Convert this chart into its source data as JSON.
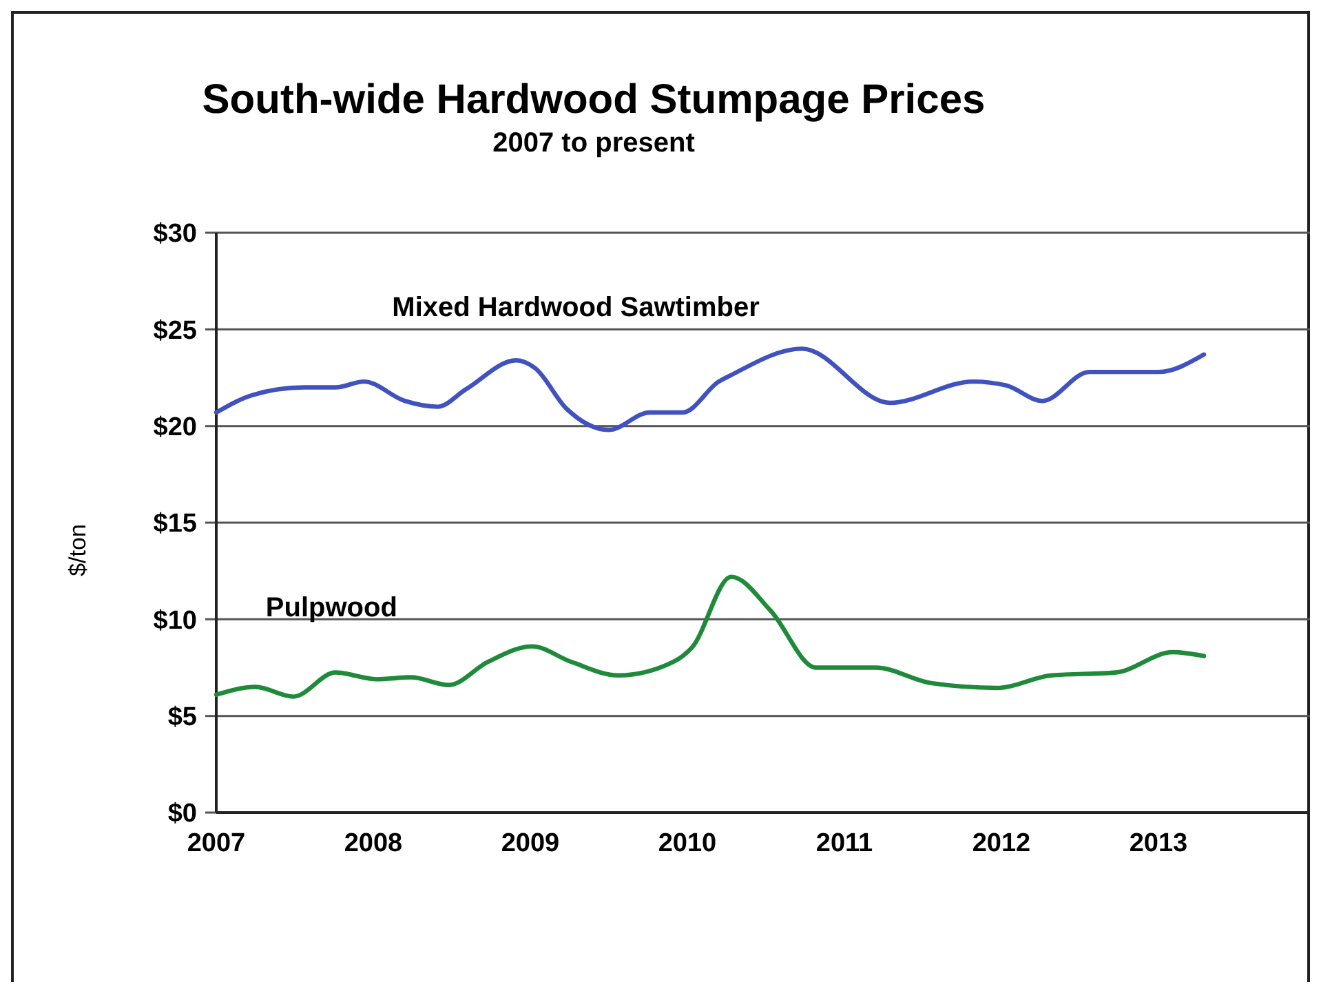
{
  "chart_data": {
    "type": "line",
    "title": "South-wide Hardwood Stumpage Prices",
    "subtitle": "2007 to present",
    "ylabel": "$/ton",
    "xlim": [
      2007,
      2014
    ],
    "xticks": [
      {
        "value": 2007,
        "label": "2007"
      },
      {
        "value": 2008,
        "label": "2008"
      },
      {
        "value": 2009,
        "label": "2009"
      },
      {
        "value": 2010,
        "label": "2010"
      },
      {
        "value": 2011,
        "label": "2011"
      },
      {
        "value": 2012,
        "label": "2012"
      },
      {
        "value": 2013,
        "label": "2013"
      }
    ],
    "ylim": [
      0,
      30
    ],
    "yticks": [
      {
        "value": 0,
        "label": "$0"
      },
      {
        "value": 5,
        "label": "$5"
      },
      {
        "value": 10,
        "label": "$10"
      },
      {
        "value": 15,
        "label": "$15"
      },
      {
        "value": 20,
        "label": "$20"
      },
      {
        "value": 25,
        "label": "$25"
      },
      {
        "value": 30,
        "label": "$30"
      }
    ],
    "grid": "y",
    "marker": "none",
    "line_style": "solid",
    "series": [
      {
        "name": "Mixed Hardwood Sawtimber",
        "color": "#4051c0",
        "x": [
          2007,
          2007.23,
          2007.56,
          2007.76,
          2007.94,
          2008.2,
          2008.41,
          2008.59,
          2008.91,
          2009.03,
          2009.23,
          2009.5,
          2009.76,
          2009.97,
          2010.2,
          2010.27,
          2010.73,
          2011.29,
          2011.82,
          2012.03,
          2012.26,
          2012.56,
          2013,
          2013.29
        ],
        "values": [
          20.7,
          21.6,
          22,
          22,
          22.3,
          21.3,
          21,
          21.9,
          23.4,
          23,
          20.9,
          19.8,
          20.7,
          20.7,
          22.3,
          22.6,
          24,
          21.2,
          22.3,
          22.1,
          21.3,
          22.8,
          22.8,
          23.7
        ]
      },
      {
        "name": "Pulpwood",
        "color": "#1e8a3a",
        "x": [
          2007,
          2007.25,
          2007.49,
          2007.76,
          2008.02,
          2008.24,
          2008.48,
          2008.73,
          2009.01,
          2009.26,
          2009.56,
          2009.91,
          2010.03,
          2010.28,
          2010.53,
          2010.82,
          2011.2,
          2011.55,
          2011.97,
          2012.32,
          2012.73,
          2013.09,
          2013.29
        ],
        "values": [
          6.1,
          6.5,
          6,
          7.25,
          6.9,
          7,
          6.6,
          7.8,
          8.6,
          7.8,
          7.1,
          7.8,
          8.55,
          12.2,
          10.45,
          7.5,
          7.5,
          6.7,
          6.45,
          7.1,
          7.25,
          8.3,
          8.1
        ]
      }
    ]
  }
}
